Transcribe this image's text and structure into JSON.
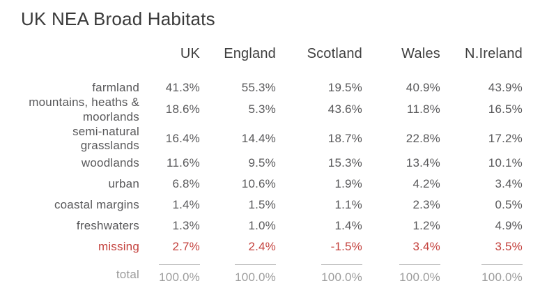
{
  "title": "UK NEA Broad Habitats",
  "colors": {
    "title-color": "#3a3a3a",
    "header-color": "#3f3f3f",
    "text-color": "#58585a",
    "muted-color": "#9b9b9b",
    "rule-color": "#b9b9b9",
    "missing-red": "#c4423e"
  },
  "table": {
    "columns": [
      "UK",
      "England",
      "Scotland",
      "Wales",
      "N.Ireland"
    ],
    "rows": [
      {
        "label": "farmland",
        "cells": [
          "41.3%",
          "55.3%",
          "19.5%",
          "40.9%",
          "43.9%"
        ]
      },
      {
        "label": "mountains, heaths & moorlands",
        "cells": [
          "18.6%",
          "5.3%",
          "43.6%",
          "11.8%",
          "16.5%"
        ]
      },
      {
        "label": "semi-natural grasslands",
        "cells": [
          "16.4%",
          "14.4%",
          "18.7%",
          "22.8%",
          "17.2%"
        ]
      },
      {
        "label": "woodlands",
        "cells": [
          "11.6%",
          "9.5%",
          "15.3%",
          "13.4%",
          "10.1%"
        ]
      },
      {
        "label": "urban",
        "cells": [
          "6.8%",
          "10.6%",
          "1.9%",
          "4.2%",
          "3.4%"
        ]
      },
      {
        "label": "coastal margins",
        "cells": [
          "1.4%",
          "1.5%",
          "1.1%",
          "2.3%",
          "0.5%"
        ]
      },
      {
        "label": "freshwaters",
        "cells": [
          "1.3%",
          "1.0%",
          "1.4%",
          "1.2%",
          "4.9%"
        ]
      },
      {
        "label": "missing",
        "cells": [
          "2.7%",
          "2.4%",
          "-1.5%",
          "3.4%",
          "3.5%"
        ]
      }
    ],
    "total": {
      "label": "total",
      "cells": [
        "100.0%",
        "100.0%",
        "100.0%",
        "100.0%",
        "100.0%"
      ]
    }
  },
  "chart_data": {
    "type": "table",
    "title": "UK NEA Broad Habitats",
    "unit": "%",
    "columns": [
      "UK",
      "England",
      "Scotland",
      "Wales",
      "N.Ireland"
    ],
    "rows": [
      {
        "label": "farmland",
        "values": [
          41.3,
          55.3,
          19.5,
          40.9,
          43.9
        ]
      },
      {
        "label": "mountains, heaths & moorlands",
        "values": [
          18.6,
          5.3,
          43.6,
          11.8,
          16.5
        ]
      },
      {
        "label": "semi-natural grasslands",
        "values": [
          16.4,
          14.4,
          18.7,
          22.8,
          17.2
        ]
      },
      {
        "label": "woodlands",
        "values": [
          11.6,
          9.5,
          15.3,
          13.4,
          10.1
        ]
      },
      {
        "label": "urban",
        "values": [
          6.8,
          10.6,
          1.9,
          4.2,
          3.4
        ]
      },
      {
        "label": "coastal margins",
        "values": [
          1.4,
          1.5,
          1.1,
          2.3,
          0.5
        ]
      },
      {
        "label": "freshwaters",
        "values": [
          1.3,
          1.0,
          1.4,
          1.2,
          4.9
        ]
      },
      {
        "label": "missing",
        "values": [
          2.7,
          2.4,
          -1.5,
          3.4,
          3.5
        ],
        "highlight": "red"
      },
      {
        "label": "total",
        "values": [
          100.0,
          100.0,
          100.0,
          100.0,
          100.0
        ],
        "muted": true
      }
    ]
  }
}
